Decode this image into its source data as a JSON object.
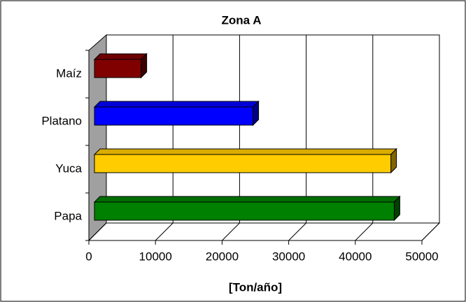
{
  "chart_data": {
    "type": "bar",
    "orientation": "horizontal",
    "title": "Zona A",
    "x_label": "[Ton/año]",
    "categories": [
      "Maíz",
      "Platano",
      "Yuca",
      "Papa"
    ],
    "values": [
      7000,
      23800,
      44500,
      45000
    ],
    "colors": [
      "#800000",
      "#0000ff",
      "#ffcc00",
      "#008000"
    ],
    "xlim": [
      0,
      50000
    ],
    "xticks": [
      0,
      10000,
      20000,
      30000,
      40000,
      50000
    ],
    "grid": true
  }
}
